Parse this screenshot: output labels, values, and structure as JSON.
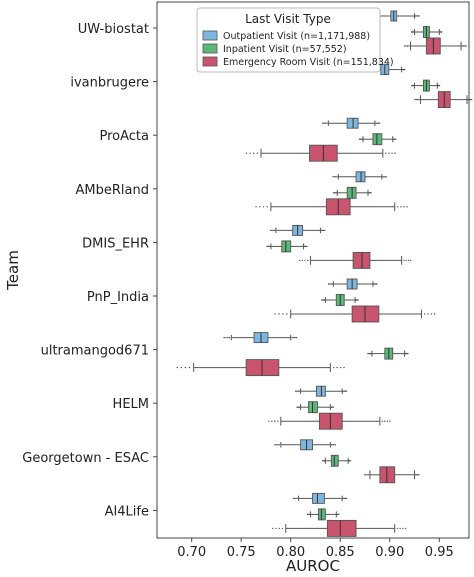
{
  "chart_data": {
    "type": "box",
    "title": "",
    "xlabel": "AUROC",
    "ylabel": "Team",
    "xlim": [
      0.665,
      0.98
    ],
    "xticks": [
      0.7,
      0.75,
      0.8,
      0.85,
      0.9,
      0.95
    ],
    "xtick_labels": [
      "0.70",
      "0.75",
      "0.80",
      "0.85",
      "0.90",
      "0.95"
    ],
    "grid": false,
    "legend": {
      "title": "Last Visit Type",
      "placement": "top-right"
    },
    "categories": [
      "UW-biostat",
      "ivanbrugere",
      "ProActa",
      "AMbeRland",
      "DMIS_EHR",
      "PnP_India",
      "ultramangod671",
      "HELM",
      "Georgetown - ESAC",
      "AI4Life"
    ],
    "series": [
      {
        "name": "Outpatient Visit (n=1,171,988)",
        "color": "#7eb6e0",
        "boxes": [
          {
            "whislo": 0.88,
            "q1": 0.901,
            "med": 0.904,
            "q3": 0.907,
            "whishi": 0.925
          },
          {
            "whislo": 0.88,
            "q1": 0.891,
            "med": 0.895,
            "q3": 0.899,
            "whishi": 0.912
          },
          {
            "whislo": 0.838,
            "q1": 0.857,
            "med": 0.863,
            "q3": 0.868,
            "whishi": 0.885
          },
          {
            "whislo": 0.848,
            "q1": 0.866,
            "med": 0.871,
            "q3": 0.875,
            "whishi": 0.892
          },
          {
            "whislo": 0.785,
            "q1": 0.802,
            "med": 0.807,
            "q3": 0.812,
            "whishi": 0.83
          },
          {
            "whislo": 0.843,
            "q1": 0.857,
            "med": 0.862,
            "q3": 0.867,
            "whishi": 0.883
          },
          {
            "whislo": 0.74,
            "q1": 0.763,
            "med": 0.77,
            "q3": 0.777,
            "whishi": 0.8
          },
          {
            "whislo": 0.81,
            "q1": 0.826,
            "med": 0.831,
            "q3": 0.835,
            "whishi": 0.852
          },
          {
            "whislo": 0.79,
            "q1": 0.81,
            "med": 0.816,
            "q3": 0.822,
            "whishi": 0.84
          },
          {
            "whislo": 0.808,
            "q1": 0.822,
            "med": 0.827,
            "q3": 0.834,
            "whishi": 0.852
          }
        ]
      },
      {
        "name": "Inpatient Visit (n=57,552)",
        "color": "#5cb87a",
        "boxes": [
          {
            "whislo": 0.925,
            "q1": 0.934,
            "med": 0.937,
            "q3": 0.94,
            "whishi": 0.95
          },
          {
            "whislo": 0.925,
            "q1": 0.934,
            "med": 0.937,
            "q3": 0.94,
            "whishi": 0.948
          },
          {
            "whislo": 0.873,
            "q1": 0.883,
            "med": 0.887,
            "q3": 0.892,
            "whishi": 0.903
          },
          {
            "whislo": 0.847,
            "q1": 0.857,
            "med": 0.862,
            "q3": 0.866,
            "whishi": 0.878
          },
          {
            "whislo": 0.78,
            "q1": 0.791,
            "med": 0.795,
            "q3": 0.8,
            "whishi": 0.813
          },
          {
            "whislo": 0.835,
            "q1": 0.846,
            "med": 0.85,
            "q3": 0.854,
            "whishi": 0.865
          },
          {
            "whislo": 0.882,
            "q1": 0.895,
            "med": 0.899,
            "q3": 0.903,
            "whishi": 0.915
          },
          {
            "whislo": 0.81,
            "q1": 0.818,
            "med": 0.822,
            "q3": 0.827,
            "whishi": 0.84
          },
          {
            "whislo": 0.835,
            "q1": 0.841,
            "med": 0.844,
            "q3": 0.848,
            "whishi": 0.858
          },
          {
            "whislo": 0.82,
            "q1": 0.828,
            "med": 0.831,
            "q3": 0.835,
            "whishi": 0.846
          }
        ]
      },
      {
        "name": "Emergency Room Visit (n=151,834)",
        "color": "#c9546d",
        "boxes": [
          {
            "whislo": 0.921,
            "q1": 0.937,
            "med": 0.944,
            "q3": 0.951,
            "whishi": 0.972
          },
          {
            "whislo": 0.931,
            "q1": 0.949,
            "med": 0.955,
            "q3": 0.961,
            "whishi": 0.978
          },
          {
            "whislo": 0.77,
            "q1": 0.819,
            "med": 0.833,
            "q3": 0.847,
            "whishi": 0.893
          },
          {
            "whislo": 0.78,
            "q1": 0.836,
            "med": 0.848,
            "q3": 0.86,
            "whishi": 0.905
          },
          {
            "whislo": 0.82,
            "q1": 0.863,
            "med": 0.872,
            "q3": 0.88,
            "whishi": 0.912
          },
          {
            "whislo": 0.8,
            "q1": 0.862,
            "med": 0.875,
            "q3": 0.889,
            "whishi": 0.932
          },
          {
            "whislo": 0.702,
            "q1": 0.755,
            "med": 0.771,
            "q3": 0.788,
            "whishi": 0.84
          },
          {
            "whislo": 0.79,
            "q1": 0.829,
            "med": 0.84,
            "q3": 0.852,
            "whishi": 0.89
          },
          {
            "whislo": 0.88,
            "q1": 0.89,
            "med": 0.897,
            "q3": 0.905,
            "whishi": 0.925
          },
          {
            "whislo": 0.795,
            "q1": 0.837,
            "med": 0.85,
            "q3": 0.866,
            "whishi": 0.905
          }
        ]
      }
    ]
  }
}
